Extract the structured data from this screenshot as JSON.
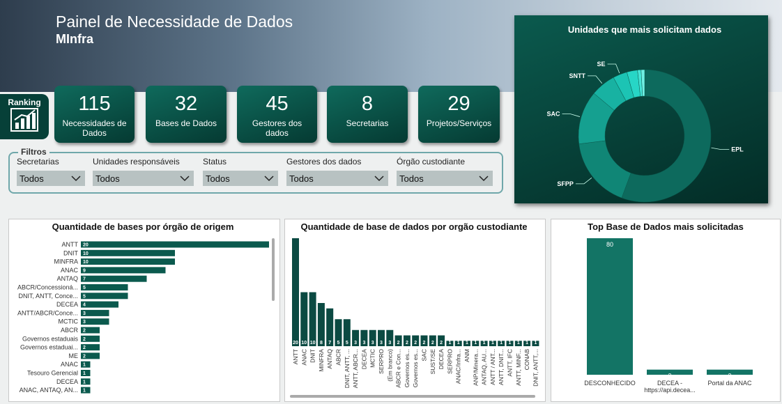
{
  "header": {
    "title": "Painel de Necessidade de Dados",
    "subtitle": "MInfra"
  },
  "ranking": {
    "label": "Ranking"
  },
  "kpis": [
    {
      "value": 115,
      "label": "Necessidades de Dados"
    },
    {
      "value": 32,
      "label": "Bases de Dados"
    },
    {
      "value": 45,
      "label": "Gestores dos dados"
    },
    {
      "value": 8,
      "label": "Secretarias"
    },
    {
      "value": 29,
      "label": "Projetos/Serviços"
    }
  ],
  "filters": {
    "title": "Filtros",
    "items": [
      {
        "label": "Secretarias",
        "value": "Todos"
      },
      {
        "label": "Unidades responsáveis",
        "value": "Todos"
      },
      {
        "label": "Status",
        "value": "Todos"
      },
      {
        "label": "Gestores dos dados",
        "value": "Todos"
      },
      {
        "label": "Órgão custodiante",
        "value": "Todos"
      }
    ]
  },
  "chart_data": [
    {
      "type": "pie",
      "donut": true,
      "title": "Unidades que mais solicitam dados",
      "categories": [
        "EPL",
        "SFPP",
        "SAC",
        "SNTT",
        "SE",
        null,
        null,
        null
      ],
      "values": [
        64,
        20,
        15,
        7,
        4,
        3,
        1,
        1
      ],
      "colors": [
        "#0d6a5d",
        "#108676",
        "#15a090",
        "#18b2a2",
        "#1cc4b4",
        "#27d6c6",
        "#45e4d6",
        "#6ff0e4"
      ]
    },
    {
      "type": "bar",
      "orientation": "horizontal",
      "title": "Quantidade de bases por órgão de origem",
      "categories": [
        "ANTT",
        "DNIT",
        "MINFRA",
        "ANAC",
        "ANTAQ",
        "ABCR/Concessioná...",
        "DNIT, ANTT, Conce...",
        "DECEA",
        "ANTT/ABCR/Conce...",
        "MCTIC",
        "ABCR",
        "Governos estaduais",
        "Governos estaduai...",
        "ME",
        "ANAC",
        "Tesouro Gerencial",
        "DECEA",
        "ANAC, ANTAQ, AN..."
      ],
      "values": [
        20,
        10,
        10,
        9,
        7,
        5,
        5,
        4,
        3,
        3,
        2,
        2,
        2,
        2,
        1,
        1,
        1,
        1
      ],
      "xlim": [
        0,
        20
      ],
      "color": "#0b5a4e"
    },
    {
      "type": "bar",
      "title": "Quantidade de base de dados por orgão custodiante",
      "categories": [
        "ANTT",
        "ANAC",
        "DNIT",
        "MINFRA",
        "ANTAQ",
        "ABCR",
        "DNIT, ANTT, ...",
        "ANTT, ABCR...",
        "DECEA",
        "MCTIC",
        "SERPRO",
        "(Em branco)",
        "ABCR e Con...",
        "Governos es...",
        "Governos es...",
        "SAC",
        "SUST/SE",
        "DECEA",
        "SERPRO",
        "ANAC/Infra...",
        "ANM",
        "ANP/Minera...",
        "ANTAQ, AU...",
        "ANTT / ANT...",
        "ANTT, DNIT...",
        "ANTT, IFC",
        "ANTT, MINF...",
        "CONAB",
        "DNIT, ANTT,..."
      ],
      "values": [
        20,
        10,
        10,
        8,
        7,
        5,
        5,
        3,
        3,
        3,
        3,
        3,
        2,
        2,
        2,
        2,
        2,
        2,
        1,
        1,
        1,
        1,
        1,
        1,
        1,
        1,
        1,
        1,
        1
      ],
      "ylim": [
        0,
        20
      ],
      "color": "#0b4a42"
    },
    {
      "type": "bar",
      "title": "Top Base de Dados mais solicitadas",
      "categories": [
        "DESCONHECIDO",
        "DECEA - https://api.decea...",
        "Portal da ANAC"
      ],
      "values": [
        80,
        3,
        3
      ],
      "ylim": [
        0,
        80
      ],
      "color": "#137465"
    }
  ]
}
